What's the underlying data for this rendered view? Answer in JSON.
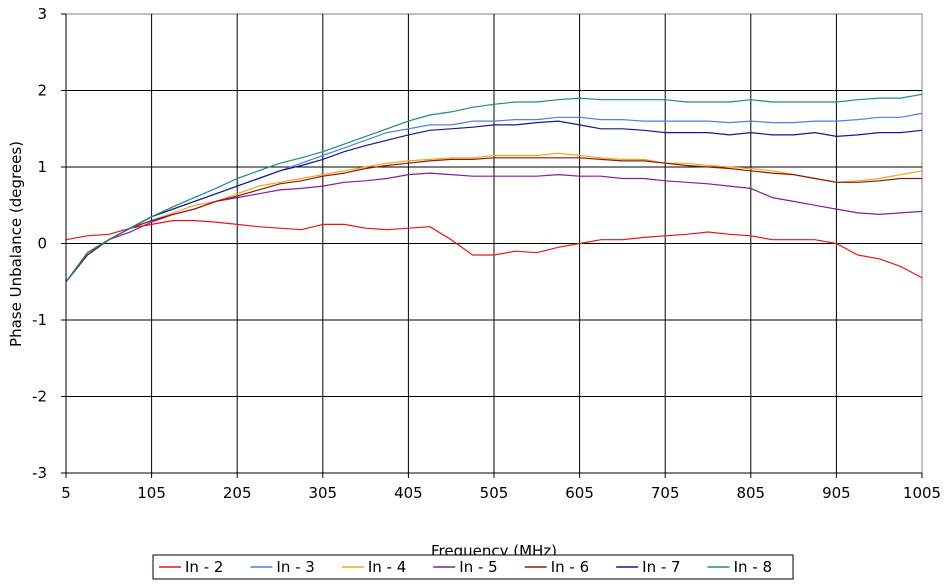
{
  "chart_data": {
    "type": "line",
    "title": "",
    "xlabel": "Frequency (MHz)",
    "ylabel": "Phase Unbalance (degrees)",
    "xlim": [
      5,
      1005
    ],
    "ylim": [
      -3,
      3
    ],
    "x_ticks": [
      5,
      105,
      205,
      305,
      405,
      505,
      605,
      705,
      805,
      905,
      1005
    ],
    "y_ticks": [
      -3,
      -2,
      -1,
      0,
      1,
      2,
      3
    ],
    "grid": true,
    "legend_position": "bottom",
    "x": [
      5,
      30,
      55,
      80,
      105,
      130,
      155,
      180,
      205,
      230,
      255,
      280,
      305,
      330,
      355,
      380,
      405,
      430,
      455,
      480,
      505,
      530,
      555,
      580,
      605,
      630,
      655,
      680,
      705,
      730,
      755,
      780,
      805,
      830,
      855,
      880,
      905,
      930,
      955,
      980,
      1005
    ],
    "series": [
      {
        "name": "In - 2",
        "color": "#e8141c",
        "values": [
          0.05,
          0.1,
          0.12,
          0.2,
          0.25,
          0.3,
          0.3,
          0.28,
          0.25,
          0.22,
          0.2,
          0.18,
          0.25,
          0.25,
          0.2,
          0.18,
          0.2,
          0.22,
          0.05,
          -0.15,
          -0.15,
          -0.1,
          -0.12,
          -0.05,
          0.0,
          0.05,
          0.05,
          0.08,
          0.1,
          0.12,
          0.15,
          0.12,
          0.1,
          0.05,
          0.05,
          0.05,
          0.0,
          -0.15,
          -0.2,
          -0.3,
          -0.45
        ]
      },
      {
        "name": "In - 3",
        "color": "#4f7fe8",
        "values": [
          -0.5,
          -0.15,
          0.05,
          0.2,
          0.35,
          0.45,
          0.55,
          0.65,
          0.75,
          0.85,
          0.95,
          1.05,
          1.15,
          1.25,
          1.35,
          1.45,
          1.5,
          1.55,
          1.55,
          1.6,
          1.6,
          1.62,
          1.62,
          1.65,
          1.65,
          1.62,
          1.62,
          1.6,
          1.6,
          1.6,
          1.6,
          1.58,
          1.6,
          1.58,
          1.58,
          1.6,
          1.6,
          1.62,
          1.65,
          1.65,
          1.7
        ]
      },
      {
        "name": "In - 4",
        "color": "#f2a61c",
        "values": [
          -0.5,
          -0.15,
          0.05,
          0.2,
          0.3,
          0.4,
          0.5,
          0.55,
          0.65,
          0.75,
          0.8,
          0.85,
          0.9,
          0.95,
          1.0,
          1.05,
          1.08,
          1.1,
          1.12,
          1.12,
          1.15,
          1.15,
          1.15,
          1.18,
          1.15,
          1.12,
          1.1,
          1.1,
          1.05,
          1.05,
          1.02,
          1.0,
          0.98,
          0.95,
          0.9,
          0.85,
          0.8,
          0.82,
          0.85,
          0.9,
          0.95
        ]
      },
      {
        "name": "In - 5",
        "color": "#8a1a9c",
        "values": [
          -0.5,
          -0.15,
          0.05,
          0.15,
          0.28,
          0.38,
          0.45,
          0.55,
          0.6,
          0.65,
          0.7,
          0.72,
          0.75,
          0.8,
          0.82,
          0.85,
          0.9,
          0.92,
          0.9,
          0.88,
          0.88,
          0.88,
          0.88,
          0.9,
          0.88,
          0.88,
          0.85,
          0.85,
          0.82,
          0.8,
          0.78,
          0.75,
          0.72,
          0.6,
          0.55,
          0.5,
          0.45,
          0.4,
          0.38,
          0.4,
          0.42
        ]
      },
      {
        "name": "In - 6",
        "color": "#8b1a0e",
        "values": [
          -0.5,
          -0.15,
          0.05,
          0.2,
          0.3,
          0.38,
          0.45,
          0.55,
          0.62,
          0.7,
          0.78,
          0.82,
          0.88,
          0.92,
          0.98,
          1.02,
          1.05,
          1.08,
          1.1,
          1.1,
          1.12,
          1.12,
          1.12,
          1.12,
          1.12,
          1.1,
          1.08,
          1.08,
          1.05,
          1.02,
          1.0,
          0.98,
          0.95,
          0.92,
          0.9,
          0.85,
          0.8,
          0.8,
          0.82,
          0.85,
          0.85
        ]
      },
      {
        "name": "In - 7",
        "color": "#141a8c",
        "values": [
          -0.5,
          -0.12,
          0.05,
          0.2,
          0.35,
          0.45,
          0.55,
          0.65,
          0.75,
          0.85,
          0.95,
          1.02,
          1.1,
          1.2,
          1.28,
          1.35,
          1.42,
          1.48,
          1.5,
          1.52,
          1.55,
          1.55,
          1.58,
          1.6,
          1.55,
          1.5,
          1.5,
          1.48,
          1.45,
          1.45,
          1.45,
          1.42,
          1.45,
          1.42,
          1.42,
          1.45,
          1.4,
          1.42,
          1.45,
          1.45,
          1.48
        ]
      },
      {
        "name": "In - 8",
        "color": "#1a8c86",
        "values": [
          -0.5,
          -0.12,
          0.05,
          0.2,
          0.35,
          0.48,
          0.6,
          0.72,
          0.85,
          0.95,
          1.05,
          1.12,
          1.2,
          1.3,
          1.4,
          1.5,
          1.6,
          1.68,
          1.72,
          1.78,
          1.82,
          1.85,
          1.85,
          1.88,
          1.9,
          1.88,
          1.88,
          1.88,
          1.88,
          1.85,
          1.85,
          1.85,
          1.88,
          1.85,
          1.85,
          1.85,
          1.85,
          1.88,
          1.9,
          1.9,
          1.95
        ]
      }
    ]
  }
}
